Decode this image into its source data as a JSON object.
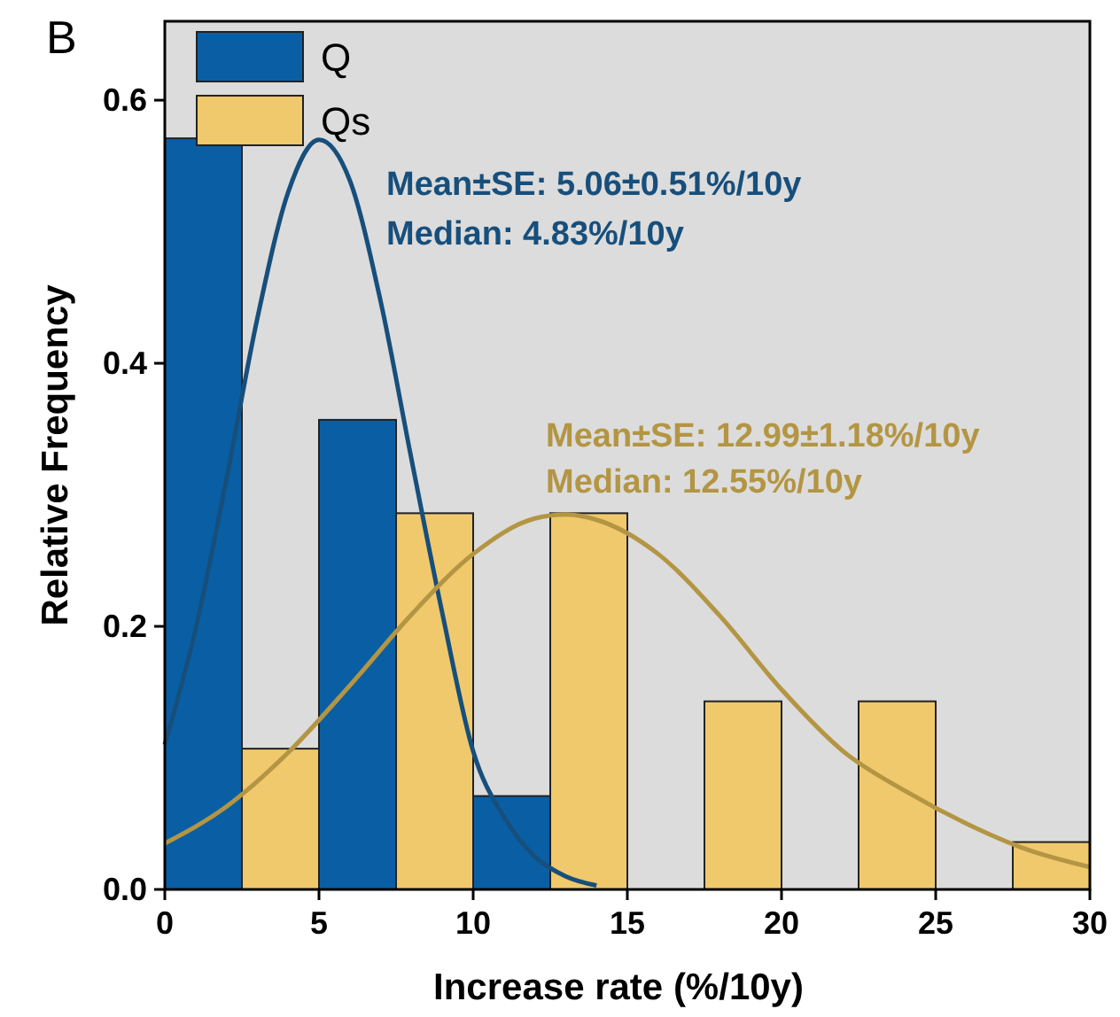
{
  "chart_data": {
    "type": "histogram",
    "title": "B",
    "xlabel": "Increase rate (%/10y)",
    "ylabel": "Relative Frequency",
    "bins": [
      0,
      5,
      10,
      15,
      20,
      25,
      30
    ],
    "series": [
      {
        "name": "Q",
        "color": "#0a5fa4",
        "values": [
          0.571,
          0.357,
          0.071,
          0,
          0,
          0
        ]
      },
      {
        "name": "Qs",
        "color": "#f0c96d",
        "values": [
          0.107,
          0.286,
          0.286,
          0.143,
          0.143,
          0.036
        ]
      },
      {
        "type": "line",
        "color": "#174f7c",
        "x": [
          0,
          1,
          2,
          3,
          4,
          5,
          6,
          7,
          8,
          9,
          10,
          11,
          12,
          13,
          14
        ],
        "values": [
          0.11,
          0.198,
          0.312,
          0.434,
          0.53,
          0.57,
          0.539,
          0.447,
          0.327,
          0.21,
          0.105,
          0.055,
          0.025,
          0.01,
          0.003
        ]
      },
      {
        "type": "line",
        "color": "#b39543",
        "x": [
          0,
          2,
          4,
          6,
          8,
          10,
          12,
          13,
          14,
          16,
          18,
          20,
          22,
          24,
          26,
          28,
          30
        ],
        "values": [
          0.035,
          0.063,
          0.104,
          0.155,
          0.209,
          0.255,
          0.282,
          0.285,
          0.281,
          0.255,
          0.208,
          0.152,
          0.105,
          0.075,
          0.05,
          0.03,
          0.017
        ]
      }
    ],
    "xlim": [
      0,
      30
    ],
    "xticks": [
      0,
      5,
      10,
      15,
      20,
      25,
      30
    ],
    "ylim": [
      0,
      0.66
    ],
    "yticks": [
      {
        "value": 0,
        "label": "0.0"
      },
      0.2,
      0.4,
      0.6
    ],
    "grid": false,
    "legend": "top left",
    "annotations": [
      "Mean±SE: 5.06±0.51%/10y",
      "Median: 4.83%/10y",
      "Mean±SE: 12.99±1.18%/10y",
      "Median: 12.55%/10y"
    ]
  }
}
